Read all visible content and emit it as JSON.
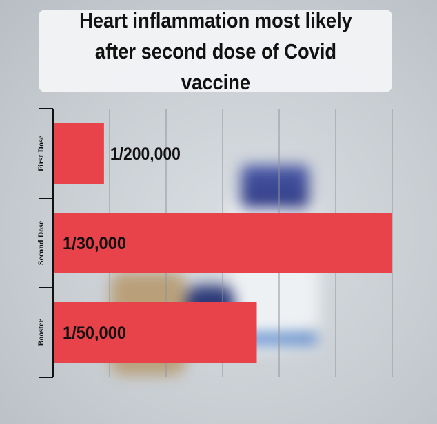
{
  "chart_data": {
    "type": "bar",
    "orientation": "horizontal",
    "title": "Heart inflammation most likely after second dose of Covid vaccine",
    "categories": [
      "First Dose",
      "Second Dose",
      "Booster"
    ],
    "values": [
      5e-06,
      3.33e-05,
      2e-05
    ],
    "value_labels": [
      "1/200,000",
      "1/30,000",
      "1/50,000"
    ],
    "xlim": [
      0,
      3.33e-05
    ],
    "grid": true,
    "bar_color": "#e8424a"
  }
}
